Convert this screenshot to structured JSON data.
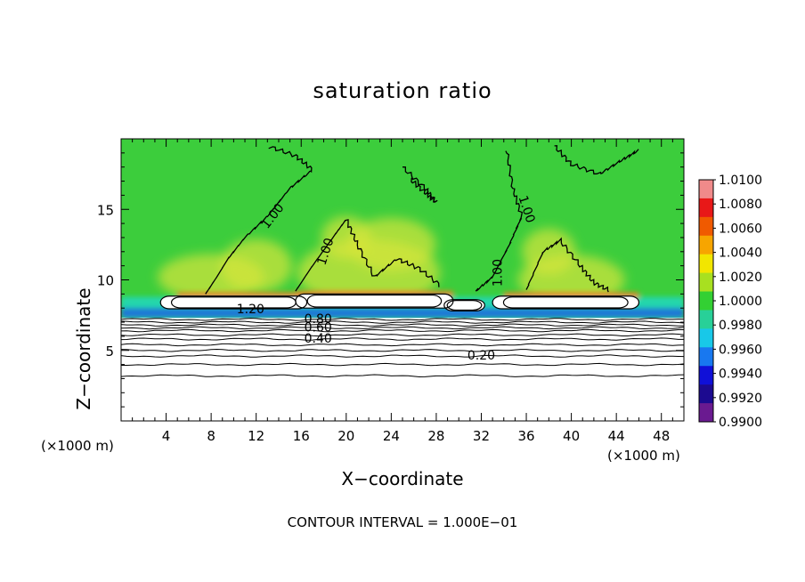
{
  "chart_data": {
    "type": "heatmap",
    "title": "saturation ratio",
    "xlabel": "X−coordinate",
    "ylabel": "Z−coordinate",
    "x_units": "(×1000 m)",
    "z_units": "(×1000 m)",
    "xlim": [
      0,
      50
    ],
    "ylim": [
      0,
      20
    ],
    "x_ticks": [
      4,
      8,
      12,
      16,
      20,
      24,
      28,
      32,
      36,
      40,
      44,
      48
    ],
    "y_ticks": [
      5,
      10,
      15
    ],
    "contour_interval_text": "CONTOUR INTERVAL = 1.000E−01",
    "contour_labels": [
      {
        "text": "1.00",
        "x": 13.5,
        "z": 14.5,
        "angle": -52
      },
      {
        "text": "1.00",
        "x": 18.2,
        "z": 12.0,
        "angle": -72
      },
      {
        "text": "1.00",
        "x": 33.5,
        "z": 10.5,
        "angle": -90
      },
      {
        "text": "1.00",
        "x": 36.0,
        "z": 15.0,
        "angle": 72
      },
      {
        "text": "1.20",
        "x": 11.5,
        "z": 7.9,
        "angle": 0
      },
      {
        "text": "0.80",
        "x": 17.5,
        "z": 7.2,
        "angle": 0
      },
      {
        "text": "0.60",
        "x": 17.5,
        "z": 6.6,
        "angle": 0
      },
      {
        "text": "0.40",
        "x": 17.5,
        "z": 5.8,
        "angle": 0
      },
      {
        "text": "0.20",
        "x": 32.0,
        "z": 4.6,
        "angle": 0
      }
    ],
    "colorbar": {
      "labels": [
        "1.0100",
        "1.0080",
        "1.0060",
        "1.0040",
        "1.0020",
        "1.0000",
        "0.9980",
        "0.9960",
        "0.9940",
        "0.9920",
        "0.9900"
      ],
      "colors": [
        "#f08a8a",
        "#e81818",
        "#f05a00",
        "#f7a500",
        "#f2e600",
        "#a8e020",
        "#33d033",
        "#28d098",
        "#18c8e8",
        "#1878f0",
        "#1010d8",
        "#1c0a90",
        "#6a1a90"
      ]
    },
    "field_colors": {
      "background": "#3ccd3c",
      "lower_region": "#ffffff",
      "edge_cyan": "#20d8c0",
      "edge_blue": "#1a5fe0",
      "warm_yellow": "#d7e63a",
      "warm_orange": "#f08020"
    }
  }
}
